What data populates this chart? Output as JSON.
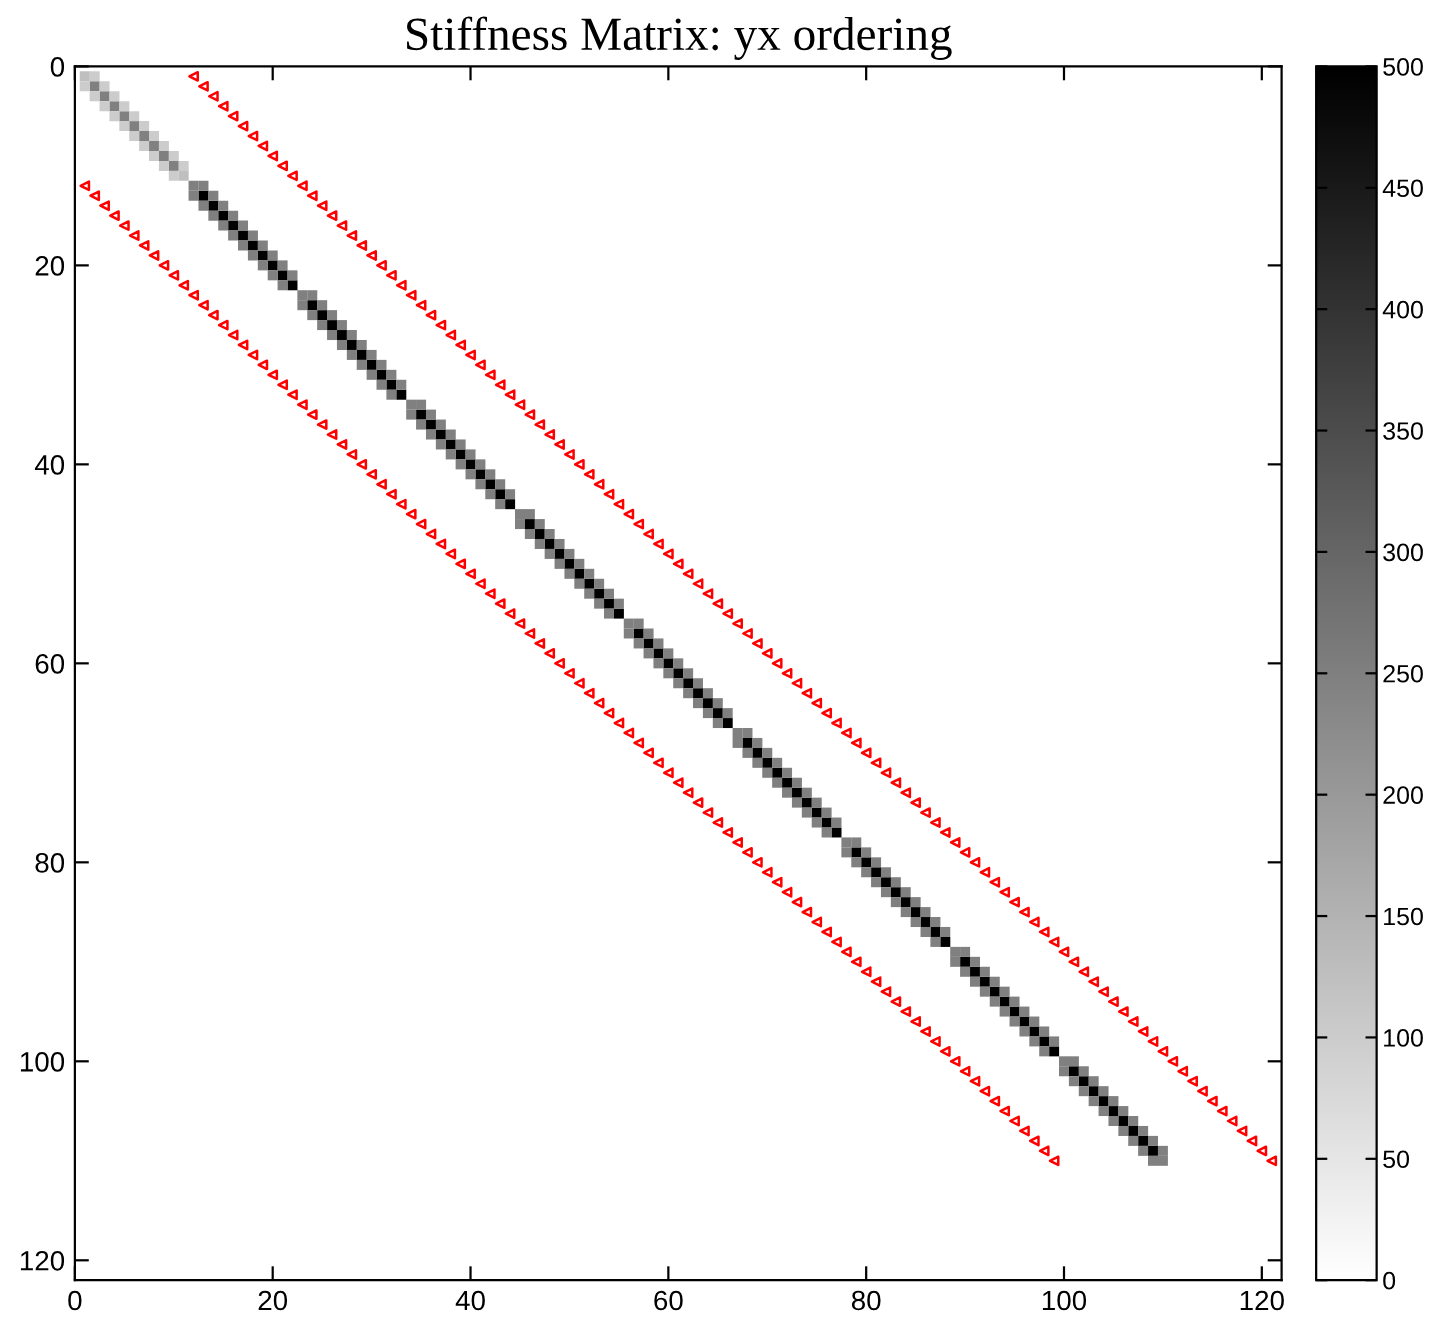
{
  "chart_data": {
    "type": "scatter",
    "title": "Stiffness Matrix: yx ordering",
    "xlim": [
      0,
      122
    ],
    "ylim": [
      122,
      0
    ],
    "xticks": [
      0,
      20,
      40,
      60,
      80,
      100,
      120
    ],
    "yticks": [
      0,
      20,
      40,
      60,
      80,
      100,
      120
    ],
    "clim": [
      0,
      500
    ],
    "cticks": [
      0,
      50,
      100,
      150,
      200,
      250,
      300,
      350,
      400,
      450,
      500
    ],
    "grid": false,
    "legend": false,
    "series": [
      {
        "type": "scatter",
        "marker": "square",
        "color": "#000000",
        "x": [
          13,
          14,
          15,
          16,
          17,
          18,
          19,
          20,
          21,
          22,
          24,
          25,
          26,
          27,
          28,
          29,
          30,
          31,
          32,
          33,
          35,
          36,
          37,
          38,
          39,
          40,
          41,
          42,
          43,
          44,
          46,
          47,
          48,
          49,
          50,
          51,
          52,
          53,
          54,
          55,
          57,
          58,
          59,
          60,
          61,
          62,
          63,
          64,
          65,
          66,
          68,
          69,
          70,
          71,
          72,
          73,
          74,
          75,
          76,
          77,
          79,
          80,
          81,
          82,
          83,
          84,
          85,
          86,
          87,
          88,
          90,
          91,
          92,
          93,
          94,
          95,
          96,
          97,
          98,
          99,
          101,
          102,
          103,
          104,
          105,
          106,
          107,
          108,
          109
        ],
        "values": [
          13,
          14,
          15,
          16,
          17,
          18,
          19,
          20,
          21,
          22,
          24,
          25,
          26,
          27,
          28,
          29,
          30,
          31,
          32,
          33,
          35,
          36,
          37,
          38,
          39,
          40,
          41,
          42,
          43,
          44,
          46,
          47,
          48,
          49,
          50,
          51,
          52,
          53,
          54,
          55,
          57,
          58,
          59,
          60,
          61,
          62,
          63,
          64,
          65,
          66,
          68,
          69,
          70,
          71,
          72,
          73,
          74,
          75,
          76,
          77,
          79,
          80,
          81,
          82,
          83,
          84,
          85,
          86,
          87,
          88,
          90,
          91,
          92,
          93,
          94,
          95,
          96,
          97,
          98,
          99,
          101,
          102,
          103,
          104,
          105,
          106,
          107,
          108,
          109
        ]
      },
      {
        "type": "scatter",
        "marker": "square",
        "color": "#808080",
        "x": [
          2,
          3,
          4,
          5,
          6,
          7,
          8,
          9,
          10,
          12,
          23,
          34,
          45,
          56,
          67,
          78,
          89,
          100,
          110
        ],
        "values": [
          2,
          3,
          4,
          5,
          6,
          7,
          8,
          9,
          10,
          12,
          23,
          34,
          45,
          56,
          67,
          78,
          89,
          100,
          110
        ]
      },
      {
        "type": "scatter",
        "marker": "square",
        "color": "#bfbfbf",
        "x": [
          1,
          11
        ],
        "values": [
          1,
          11
        ]
      },
      {
        "type": "scatter",
        "marker": "square",
        "color": "#cccccc",
        "x": [
          2,
          3,
          4,
          5,
          6,
          7,
          8,
          9,
          10,
          11,
          1,
          2,
          3,
          4,
          5,
          6,
          7,
          8,
          9,
          10
        ],
        "values": [
          1,
          2,
          3,
          4,
          5,
          6,
          7,
          8,
          9,
          10,
          2,
          3,
          4,
          5,
          6,
          7,
          8,
          9,
          10,
          11
        ]
      },
      {
        "type": "scatter",
        "marker": "square",
        "color": "#808080",
        "x": [
          13,
          14,
          15,
          16,
          17,
          18,
          19,
          20,
          21,
          22,
          24,
          25,
          26,
          27,
          28,
          29,
          30,
          31,
          32,
          33,
          35,
          36,
          37,
          38,
          39,
          40,
          41,
          42,
          43,
          44,
          46,
          47,
          48,
          49,
          50,
          51,
          52,
          53,
          54,
          55,
          57,
          58,
          59,
          60,
          61,
          62,
          63,
          64,
          65,
          66,
          68,
          69,
          70,
          71,
          72,
          73,
          74,
          75,
          76,
          77,
          79,
          80,
          81,
          82,
          83,
          84,
          85,
          86,
          87,
          88,
          90,
          91,
          92,
          93,
          94,
          95,
          96,
          97,
          98,
          99,
          101,
          102,
          103,
          104,
          105,
          106,
          107,
          108,
          109,
          110
        ],
        "values": [
          12,
          13,
          14,
          15,
          16,
          17,
          18,
          19,
          20,
          21,
          23,
          24,
          25,
          26,
          27,
          28,
          29,
          30,
          31,
          32,
          34,
          35,
          36,
          37,
          38,
          39,
          40,
          41,
          42,
          43,
          45,
          46,
          47,
          48,
          49,
          50,
          51,
          52,
          53,
          54,
          56,
          57,
          58,
          59,
          60,
          61,
          62,
          63,
          64,
          65,
          67,
          68,
          69,
          70,
          71,
          72,
          73,
          74,
          75,
          76,
          78,
          79,
          80,
          81,
          82,
          83,
          84,
          85,
          86,
          87,
          89,
          90,
          91,
          92,
          93,
          94,
          95,
          96,
          97,
          98,
          100,
          101,
          102,
          103,
          104,
          105,
          106,
          107,
          108,
          109
        ]
      },
      {
        "type": "scatter",
        "marker": "square",
        "color": "#808080",
        "x": [
          12,
          13,
          14,
          15,
          16,
          17,
          18,
          19,
          20,
          21,
          23,
          24,
          25,
          26,
          27,
          28,
          29,
          30,
          31,
          32,
          34,
          35,
          36,
          37,
          38,
          39,
          40,
          41,
          42,
          43,
          45,
          46,
          47,
          48,
          49,
          50,
          51,
          52,
          53,
          54,
          56,
          57,
          58,
          59,
          60,
          61,
          62,
          63,
          64,
          65,
          67,
          68,
          69,
          70,
          71,
          72,
          73,
          74,
          75,
          76,
          78,
          79,
          80,
          81,
          82,
          83,
          84,
          85,
          86,
          87,
          89,
          90,
          91,
          92,
          93,
          94,
          95,
          96,
          97,
          98,
          100,
          101,
          102,
          103,
          104,
          105,
          106,
          107,
          108,
          109
        ],
        "values": [
          13,
          14,
          15,
          16,
          17,
          18,
          19,
          20,
          21,
          22,
          24,
          25,
          26,
          27,
          28,
          29,
          30,
          31,
          32,
          33,
          35,
          36,
          37,
          38,
          39,
          40,
          41,
          42,
          43,
          44,
          46,
          47,
          48,
          49,
          50,
          51,
          52,
          53,
          54,
          55,
          57,
          58,
          59,
          60,
          61,
          62,
          63,
          64,
          65,
          66,
          68,
          69,
          70,
          71,
          72,
          73,
          74,
          75,
          76,
          77,
          79,
          80,
          81,
          82,
          83,
          84,
          85,
          86,
          87,
          88,
          90,
          91,
          92,
          93,
          94,
          95,
          96,
          97,
          98,
          99,
          101,
          102,
          103,
          104,
          105,
          106,
          107,
          108,
          109,
          110
        ]
      },
      {
        "type": "scatter",
        "marker": "triangle",
        "color": "#ff0000",
        "x": [
          12,
          13,
          14,
          15,
          16,
          17,
          18,
          19,
          20,
          21,
          22,
          23,
          24,
          25,
          26,
          27,
          28,
          29,
          30,
          31,
          32,
          33,
          34,
          35,
          36,
          37,
          38,
          39,
          40,
          41,
          42,
          43,
          44,
          45,
          46,
          47,
          48,
          49,
          50,
          51,
          52,
          53,
          54,
          55,
          56,
          57,
          58,
          59,
          60,
          61,
          62,
          63,
          64,
          65,
          66,
          67,
          68,
          69,
          70,
          71,
          72,
          73,
          74,
          75,
          76,
          77,
          78,
          79,
          80,
          81,
          82,
          83,
          84,
          85,
          86,
          87,
          88,
          89,
          90,
          91,
          92,
          93,
          94,
          95,
          96,
          97,
          98,
          99,
          100,
          101,
          102,
          103,
          104,
          105,
          106,
          107,
          108,
          109,
          110,
          111,
          112,
          113,
          114,
          115,
          116,
          117,
          118,
          119,
          120,
          121
        ],
        "values": [
          1,
          2,
          3,
          4,
          5,
          6,
          7,
          8,
          9,
          10,
          11,
          12,
          13,
          14,
          15,
          16,
          17,
          18,
          19,
          20,
          21,
          22,
          23,
          24,
          25,
          26,
          27,
          28,
          29,
          30,
          31,
          32,
          33,
          34,
          35,
          36,
          37,
          38,
          39,
          40,
          41,
          42,
          43,
          44,
          45,
          46,
          47,
          48,
          49,
          50,
          51,
          52,
          53,
          54,
          55,
          56,
          57,
          58,
          59,
          60,
          61,
          62,
          63,
          64,
          65,
          66,
          67,
          68,
          69,
          70,
          71,
          72,
          73,
          74,
          75,
          76,
          77,
          78,
          79,
          80,
          81,
          82,
          83,
          84,
          85,
          86,
          87,
          88,
          89,
          90,
          91,
          92,
          93,
          94,
          95,
          96,
          97,
          98,
          99,
          100,
          101,
          102,
          103,
          104,
          105,
          106,
          107,
          108,
          109,
          110
        ]
      },
      {
        "type": "scatter",
        "marker": "triangle",
        "color": "#ff0000",
        "x": [
          1,
          2,
          3,
          4,
          5,
          6,
          7,
          8,
          9,
          10,
          11,
          12,
          13,
          14,
          15,
          16,
          17,
          18,
          19,
          20,
          21,
          22,
          23,
          24,
          25,
          26,
          27,
          28,
          29,
          30,
          31,
          32,
          33,
          34,
          35,
          36,
          37,
          38,
          39,
          40,
          41,
          42,
          43,
          44,
          45,
          46,
          47,
          48,
          49,
          50,
          51,
          52,
          53,
          54,
          55,
          56,
          57,
          58,
          59,
          60,
          61,
          62,
          63,
          64,
          65,
          66,
          67,
          68,
          69,
          70,
          71,
          72,
          73,
          74,
          75,
          76,
          77,
          78,
          79,
          80,
          81,
          82,
          83,
          84,
          85,
          86,
          87,
          88,
          89,
          90,
          91,
          92,
          93,
          94,
          95,
          96,
          97,
          98,
          99
        ],
        "values": [
          12,
          13,
          14,
          15,
          16,
          17,
          18,
          19,
          20,
          21,
          22,
          23,
          24,
          25,
          26,
          27,
          28,
          29,
          30,
          31,
          32,
          33,
          34,
          35,
          36,
          37,
          38,
          39,
          40,
          41,
          42,
          43,
          44,
          45,
          46,
          47,
          48,
          49,
          50,
          51,
          52,
          53,
          54,
          55,
          56,
          57,
          58,
          59,
          60,
          61,
          62,
          63,
          64,
          65,
          66,
          67,
          68,
          69,
          70,
          71,
          72,
          73,
          74,
          75,
          76,
          77,
          78,
          79,
          80,
          81,
          82,
          83,
          84,
          85,
          86,
          87,
          88,
          89,
          90,
          91,
          92,
          93,
          94,
          95,
          96,
          97,
          98,
          99,
          100,
          101,
          102,
          103,
          104,
          105,
          106,
          107,
          108,
          109,
          110
        ]
      }
    ]
  }
}
